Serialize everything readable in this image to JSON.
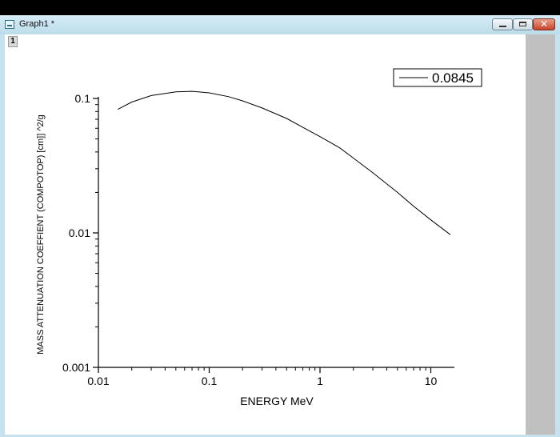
{
  "window": {
    "title": "Graph1 *",
    "layer_label": "1"
  },
  "chart_data": {
    "type": "line",
    "title": "",
    "xlabel": "ENERGY MeV",
    "ylabel": "MASS ATTENUATION COEFFIENT (COMPOTOP) [cm]] ^2/g",
    "xscale": "log",
    "yscale": "log",
    "xlim": [
      0.01,
      15
    ],
    "ylim": [
      0.001,
      0.13
    ],
    "xticks": [
      {
        "value": 0.01,
        "label": "0.01"
      },
      {
        "value": 0.1,
        "label": "0.1"
      },
      {
        "value": 1,
        "label": "1"
      },
      {
        "value": 10,
        "label": "10"
      }
    ],
    "yticks": [
      {
        "value": 0.001,
        "label": "0.001"
      },
      {
        "value": 0.01,
        "label": "0.01"
      },
      {
        "value": 0.1,
        "label": "0.1"
      }
    ],
    "grid": false,
    "legend_position": "top-right",
    "series": [
      {
        "name": "0.0845",
        "color": "#000000",
        "points": [
          [
            0.015,
            0.083
          ],
          [
            0.02,
            0.094
          ],
          [
            0.03,
            0.105
          ],
          [
            0.05,
            0.112
          ],
          [
            0.07,
            0.113
          ],
          [
            0.1,
            0.11
          ],
          [
            0.15,
            0.103
          ],
          [
            0.2,
            0.096
          ],
          [
            0.3,
            0.085
          ],
          [
            0.5,
            0.071
          ],
          [
            0.7,
            0.061
          ],
          [
            1,
            0.052
          ],
          [
            1.5,
            0.043
          ],
          [
            2,
            0.036
          ],
          [
            3,
            0.028
          ],
          [
            5,
            0.02
          ],
          [
            7,
            0.0158
          ],
          [
            10,
            0.0125
          ],
          [
            15,
            0.0097
          ]
        ]
      }
    ]
  }
}
